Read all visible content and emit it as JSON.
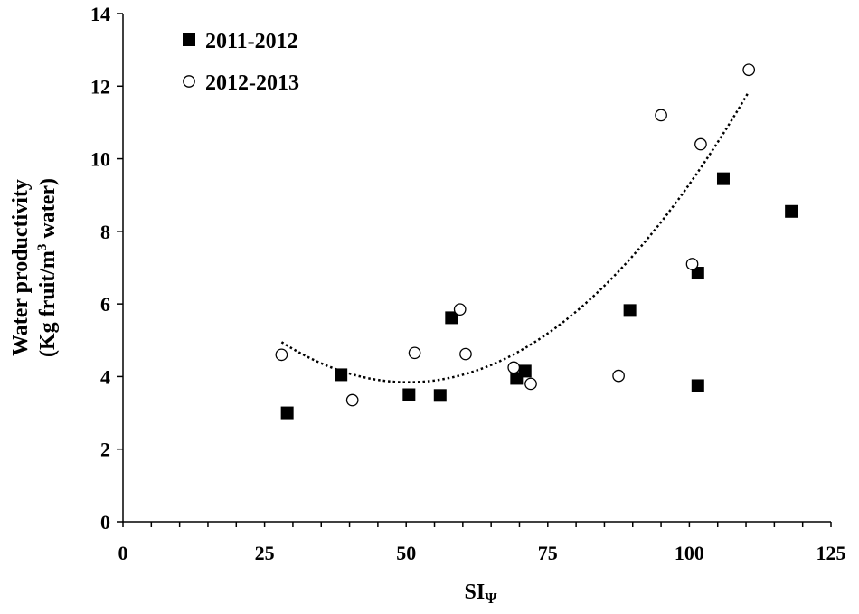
{
  "chart_data": {
    "type": "scatter",
    "xlabel": "SI",
    "xlabel_sub": "Ψ",
    "ylabel_line1": "Water productivity",
    "ylabel_line2_pre": "(Kg fruit/m",
    "ylabel_line2_sup": "3",
    "ylabel_line2_post": " water)",
    "xlim": [
      0,
      125
    ],
    "ylim": [
      0,
      14
    ],
    "xticks": [
      "0",
      "25",
      "50",
      "75",
      "100",
      "125"
    ],
    "yticks": [
      "0",
      "2",
      "4",
      "6",
      "8",
      "10",
      "12",
      "14"
    ],
    "grid": false,
    "legend_position": "top-left",
    "series": [
      {
        "name": "2011-2012",
        "marker": "filled-square",
        "color": "#000000",
        "points": [
          [
            29,
            3.0
          ],
          [
            38.5,
            4.05
          ],
          [
            50.5,
            3.5
          ],
          [
            56,
            3.48
          ],
          [
            58,
            5.62
          ],
          [
            69.5,
            3.95
          ],
          [
            71,
            4.15
          ],
          [
            89.5,
            5.82
          ],
          [
            101.5,
            6.85
          ],
          [
            101.5,
            3.75
          ],
          [
            106,
            9.45
          ],
          [
            118,
            8.55
          ]
        ]
      },
      {
        "name": "2012-2013",
        "marker": "open-circle",
        "color": "#000000",
        "points": [
          [
            28,
            4.6
          ],
          [
            40.5,
            3.35
          ],
          [
            51.5,
            4.65
          ],
          [
            59.5,
            5.85
          ],
          [
            60.5,
            4.62
          ],
          [
            69,
            4.25
          ],
          [
            72,
            3.8
          ],
          [
            87.5,
            4.02
          ],
          [
            95,
            11.2
          ],
          [
            100.5,
            7.1
          ],
          [
            102,
            10.4
          ],
          [
            110.5,
            12.45
          ]
        ]
      }
    ],
    "trendline": {
      "type": "polynomial-2",
      "style": "dotted",
      "x_range": [
        28,
        110.5
      ],
      "points": [
        [
          28,
          4.95
        ],
        [
          52,
          3.85
        ],
        [
          110.5,
          11.85
        ]
      ]
    }
  }
}
